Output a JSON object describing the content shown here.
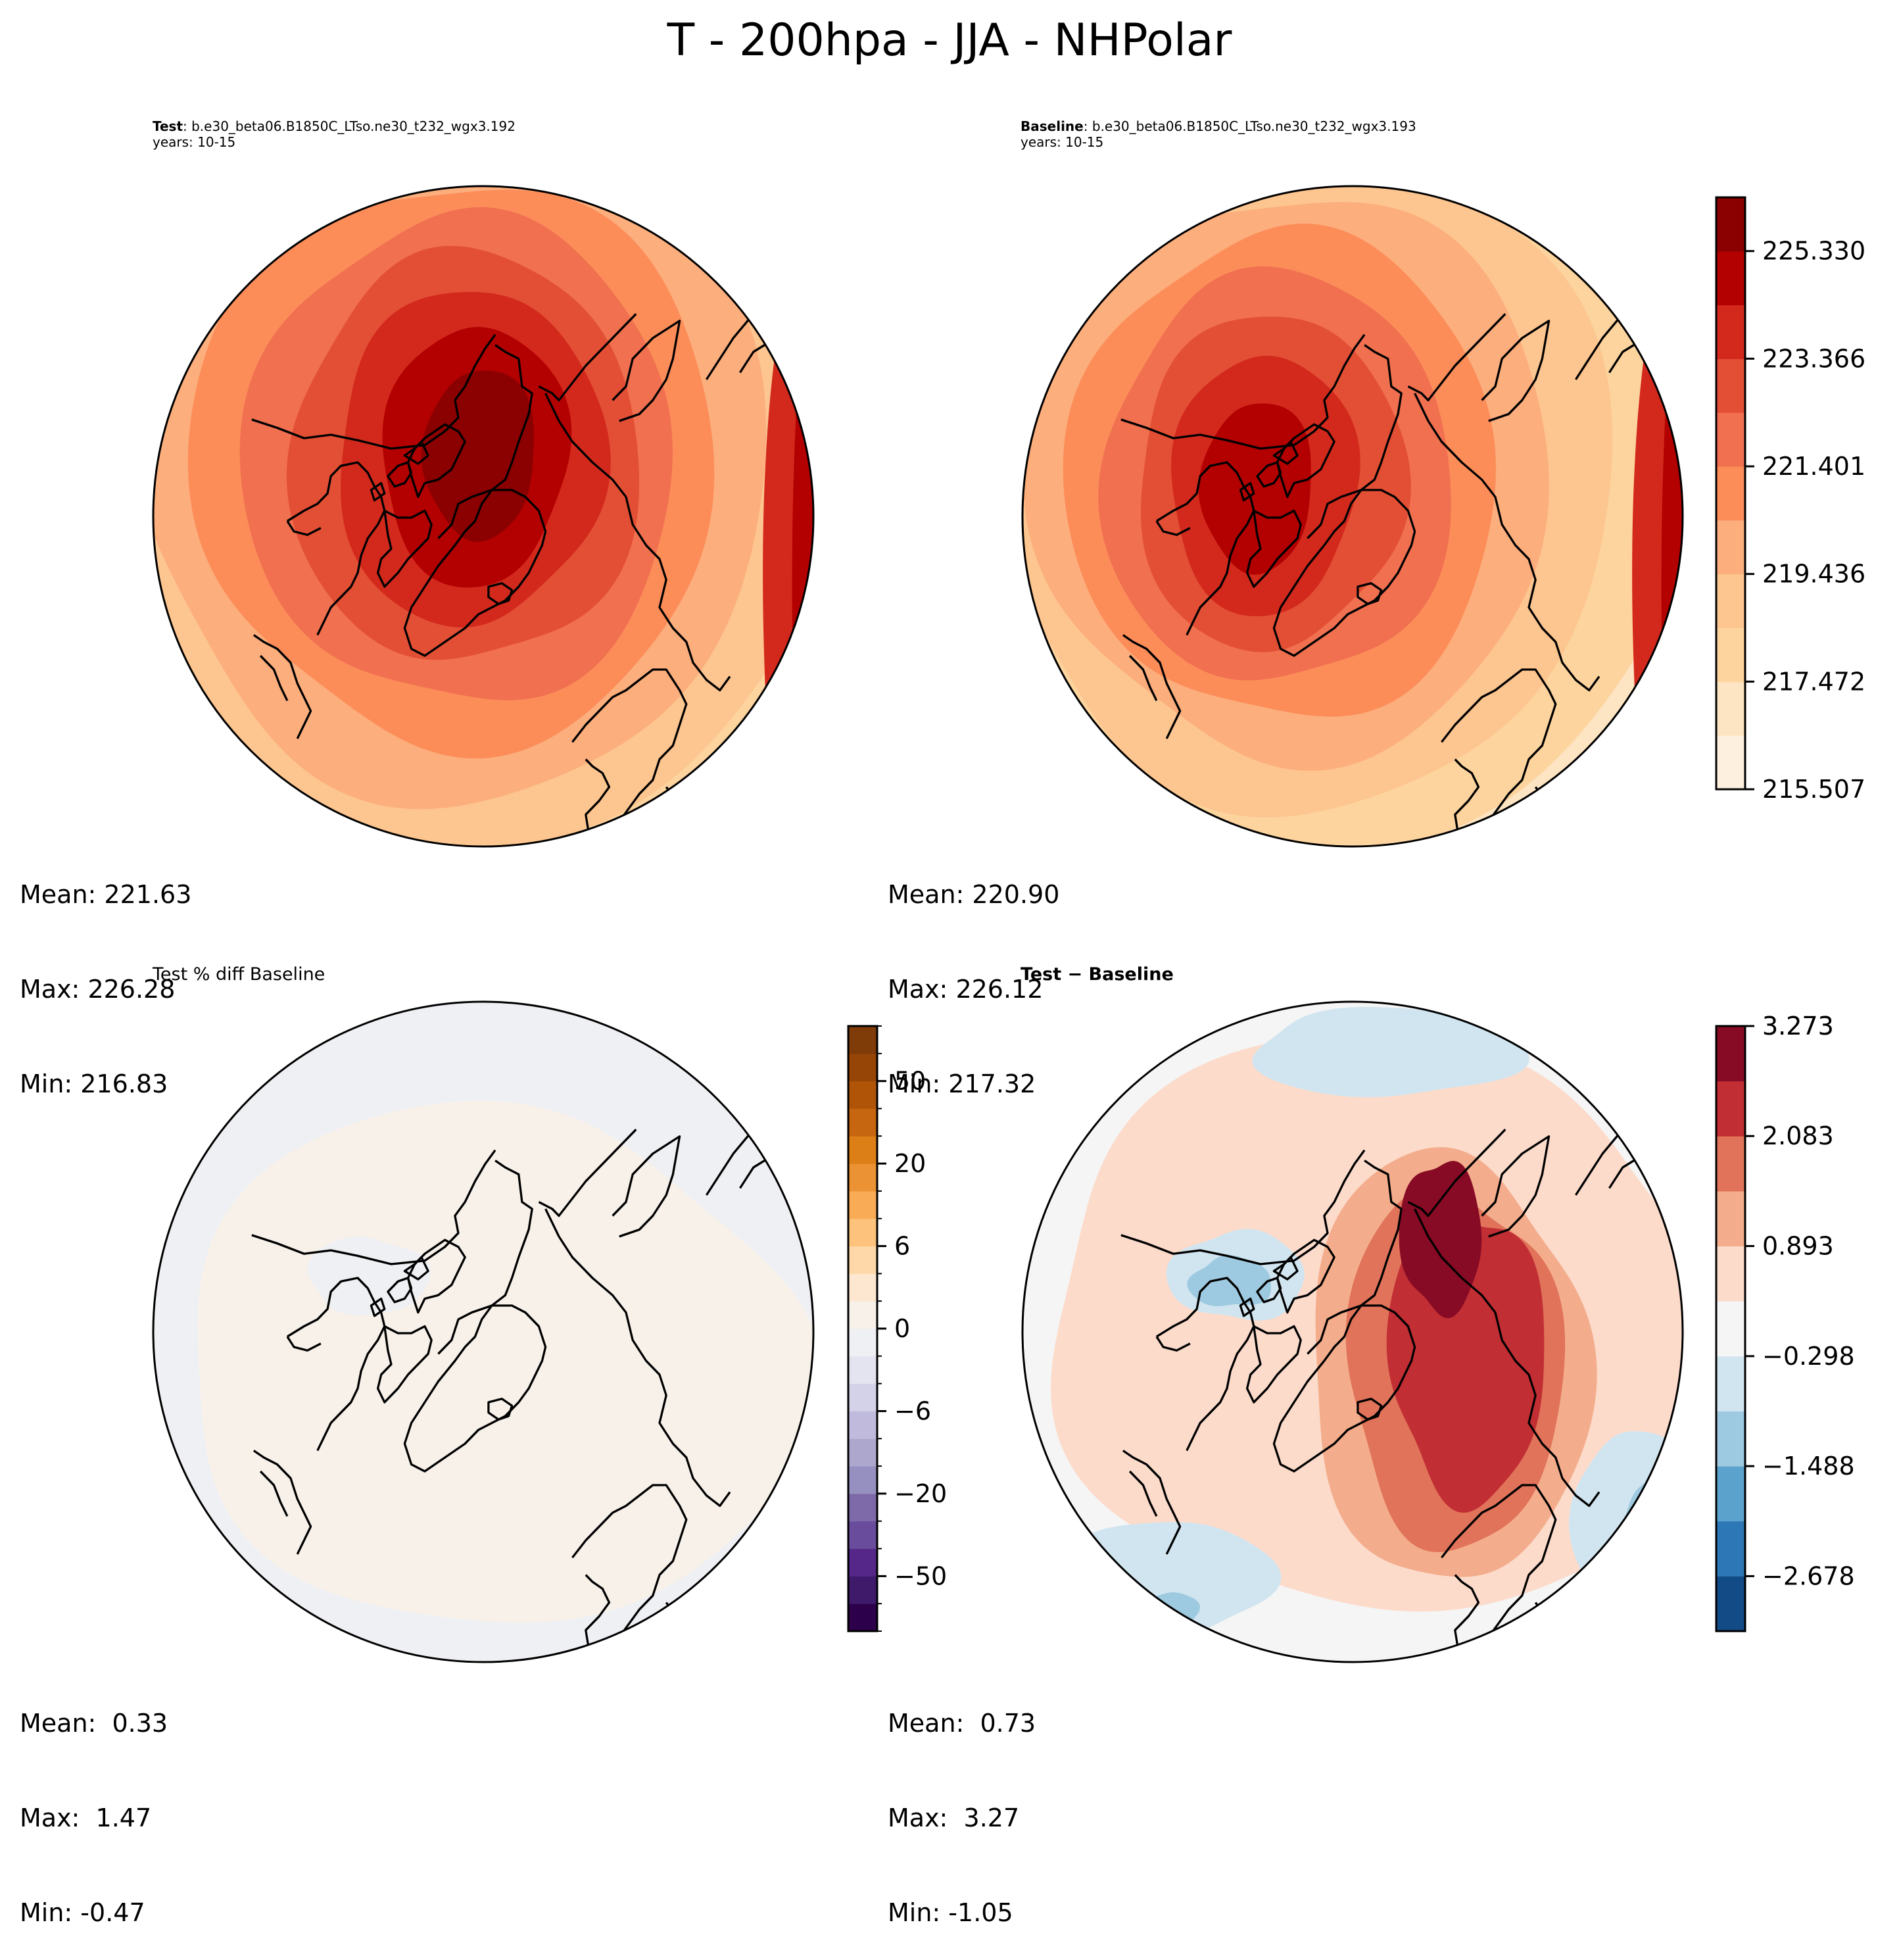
{
  "suptitle": "T - 200hpa - JJA - NHPolar",
  "panels": [
    {
      "id": "test",
      "title_bold": "Test",
      "title_rest": ": b.e30_beta06.B1850C_LTso.ne30_t232_wgx3.192",
      "subtitle": "years: 10-15",
      "stats": {
        "mean": "Mean: 221.63",
        "max": "Max: 226.28",
        "min": "Min: 216.83"
      }
    },
    {
      "id": "baseline",
      "title_bold": "Baseline",
      "title_rest": ": b.e30_beta06.B1850C_LTso.ne30_t232_wgx3.193",
      "subtitle": "years: 10-15",
      "stats": {
        "mean": "Mean: 220.90",
        "max": "Max: 226.12",
        "min": "Min: 217.32"
      }
    },
    {
      "id": "pctdiff",
      "title_plain": "Test % diff Baseline",
      "stats": {
        "mean": "Mean:  0.33",
        "max": "Max:  1.47",
        "min": "Min: -0.47"
      }
    },
    {
      "id": "diff",
      "title_bold": "Test − Baseline",
      "stats": {
        "mean": "Mean:  0.73",
        "max": "Max:  3.27",
        "min": "Min: -1.05"
      }
    }
  ],
  "chart_data": [
    {
      "type": "heatmap",
      "title": "Test: b.e30_beta06.B1850C_LTso.ne30_t232_wgx3.192 (years: 10-15)",
      "projection": "North Polar Stereographic",
      "variable": "T",
      "level": "200hpa",
      "season": "JJA",
      "colormap": "OrRd-like",
      "colorbar_ticks": [
        215.507,
        217.472,
        219.436,
        221.401,
        223.366,
        225.33
      ],
      "colorbar_range": [
        215.507,
        226.311
      ],
      "colors": [
        "#fef0de",
        "#fde4c2",
        "#fdd49e",
        "#fdc58f",
        "#fcae7d",
        "#fc8d59",
        "#f07050",
        "#e34f35",
        "#d3291d",
        "#b30000",
        "#8b0000"
      ],
      "field_summary": {
        "mean": 221.63,
        "max": 226.28,
        "min": 216.83
      },
      "structure": "warm core centered near North Pole/Arctic Ocean (~226 K), decreasing outward to ~217 K at mid-latitudes; warm band along lower-right edge"
    },
    {
      "type": "heatmap",
      "title": "Baseline: b.e30_beta06.B1850C_LTso.ne30_t232_wgx3.193 (years: 10-15)",
      "projection": "North Polar Stereographic",
      "colorbar_ticks": [
        215.507,
        217.472,
        219.436,
        221.401,
        223.366,
        225.33
      ],
      "colorbar_range": [
        215.507,
        226.311
      ],
      "colors": [
        "#fef0de",
        "#fde4c2",
        "#fdd49e",
        "#fdc58f",
        "#fcae7d",
        "#fc8d59",
        "#f07050",
        "#e34f35",
        "#d3291d",
        "#b30000",
        "#8b0000"
      ],
      "field_summary": {
        "mean": 220.9,
        "max": 226.12,
        "min": 217.32
      },
      "structure": "warm core shifted toward Canadian Archipelago (~225 K), cooler outer ring; warm band along lower-right edge"
    },
    {
      "type": "heatmap",
      "title": "Test % diff Baseline",
      "projection": "North Polar Stereographic",
      "colormap": "PuOr_r-like",
      "colorbar_ticks": [
        -50,
        -20,
        -6,
        0,
        6,
        20,
        50
      ],
      "colors": [
        "#2d004b",
        "#3f1a6b",
        "#542788",
        "#6a4c9c",
        "#7e6aa8",
        "#9590bf",
        "#ada6cd",
        "#c0bbdc",
        "#d3d2e8",
        "#e4e3f0",
        "#eff0f4",
        "#f7f1ea",
        "#fde7d0",
        "#fed8a8",
        "#fdc27c",
        "#f9ac55",
        "#ea9234",
        "#dd7f17",
        "#c76610",
        "#b05508",
        "#974507",
        "#7f3b08"
      ],
      "field_summary": {
        "mean": 0.33,
        "max": 1.47,
        "min": -0.47
      },
      "structure": "almost entirely near-zero; slight positive (cream) across most of disc, slight negative (pale grey-blue) over Canadian Archipelago, top edge and lower-left/lower-right edges"
    },
    {
      "type": "heatmap",
      "title": "Test − Baseline",
      "projection": "North Polar Stereographic",
      "colormap": "RdBu_r-like",
      "colorbar_ticks": [
        -2.678,
        -1.488,
        -0.298,
        0.893,
        2.083,
        3.273
      ],
      "colorbar_range": [
        -3.273,
        3.273
      ],
      "colors": [
        "#134b87",
        "#2e77b6",
        "#5ba3cd",
        "#9ecae1",
        "#d1e5f0",
        "#f5f5f5",
        "#fcdbcb",
        "#f4ad8c",
        "#e07359",
        "#c12e34",
        "#870b25"
      ],
      "field_summary": {
        "mean": 0.73,
        "max": 3.27,
        "min": -1.05
      },
      "structure": "strong positive anomaly (up to ~3.3) elongated over Arctic Ocean from Siberia coast to Scandinavia; weak negative (-1) over Canadian Archipelago and near lower-left/lower-right edges"
    }
  ]
}
